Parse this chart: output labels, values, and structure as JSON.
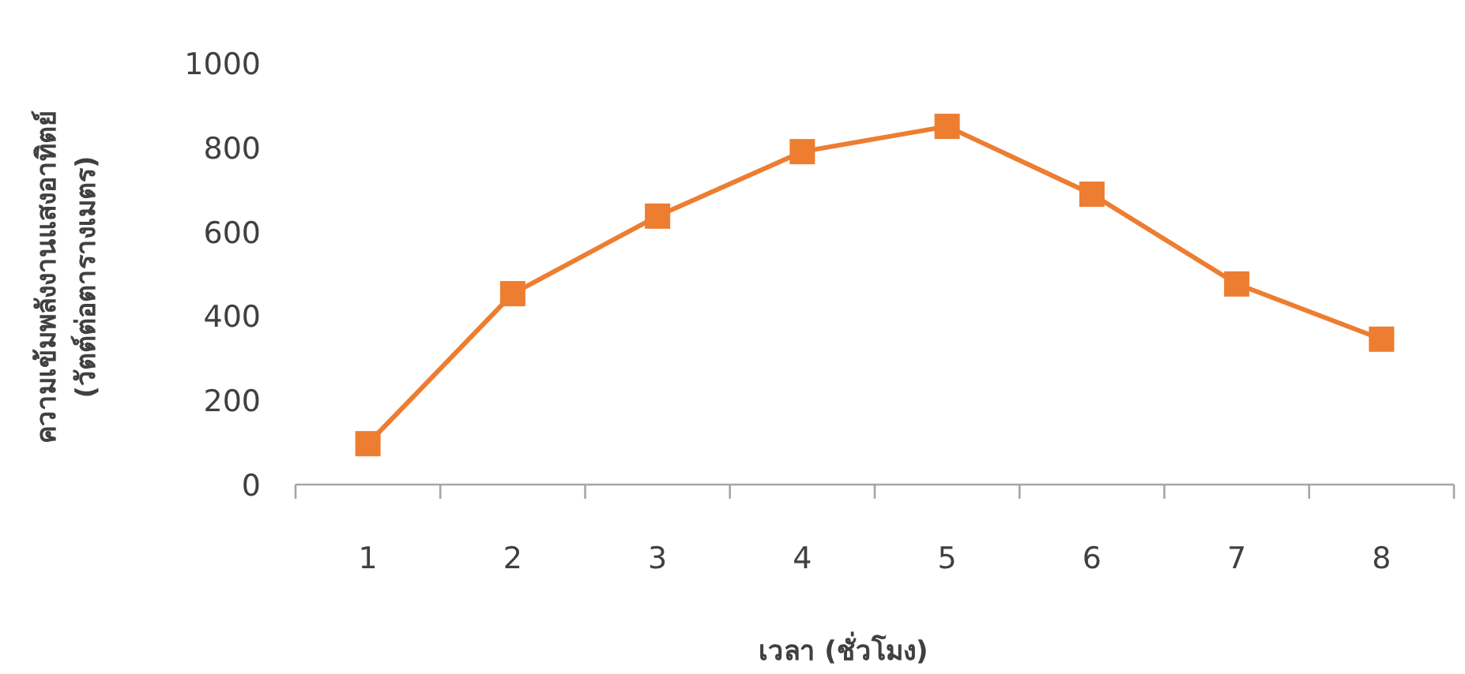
{
  "chart_data": {
    "type": "line",
    "xlabel": "เวลา (ชั่วโมง)",
    "ylabel": "ความเข้มพลังงานแสงอาทิตย์ (วัตต์ต่อตารางเมตร)",
    "categories": [
      "1",
      "2",
      "3",
      "4",
      "5",
      "6",
      "7",
      "8"
    ],
    "series": [
      {
        "color": "#ed7d31",
        "values": [
          97,
          453,
          637,
          790,
          850,
          689,
          476,
          345
        ]
      }
    ],
    "ylim": [
      0,
      1000
    ],
    "yticks": [
      0,
      200,
      400,
      600,
      800,
      1000
    ],
    "marker": "square",
    "line_style": "solid",
    "grid": false
  }
}
